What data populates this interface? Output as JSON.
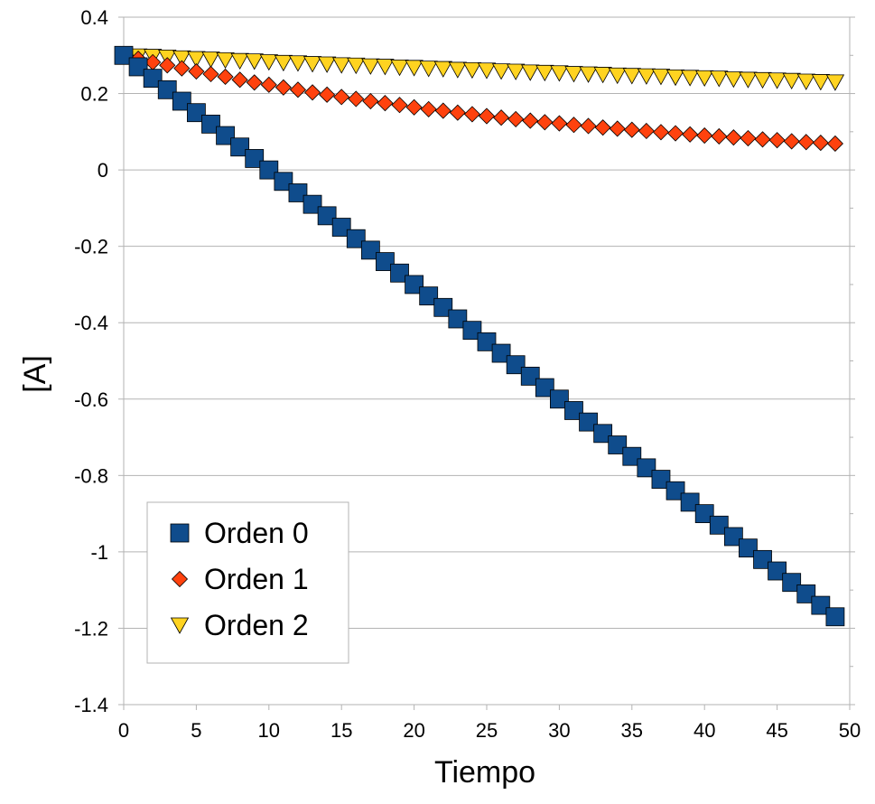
{
  "chart_data": {
    "type": "scatter",
    "xlabel": "Tiempo",
    "ylabel": "[A]",
    "xlim": [
      0,
      50
    ],
    "ylim": [
      -1.4,
      0.4
    ],
    "x_ticks": [
      0,
      5,
      10,
      15,
      20,
      25,
      30,
      35,
      40,
      45,
      50
    ],
    "y_ticks": [
      -1.4,
      -1.2,
      -1,
      -0.8,
      -0.6,
      -0.4,
      -0.2,
      0,
      0.2,
      0.4
    ],
    "x_tick_labels": [
      "0",
      "5",
      "10",
      "15",
      "20",
      "25",
      "30",
      "35",
      "40",
      "45",
      "50"
    ],
    "y_tick_labels": [
      "-1.4",
      "-1.2",
      "-1",
      "-0.8",
      "-0.6",
      "-0.4",
      "-0.2",
      "0",
      "0.2",
      "0.4"
    ],
    "grid": {
      "horizontal": true,
      "vertical": false
    },
    "legend_position": "bottom-left",
    "series": [
      {
        "name": "Orden 0",
        "marker": "square",
        "color": "#0F4C8C",
        "x": [
          0,
          1,
          2,
          3,
          4,
          5,
          6,
          7,
          8,
          9,
          10,
          11,
          12,
          13,
          14,
          15,
          16,
          17,
          18,
          19,
          20,
          21,
          22,
          23,
          24,
          25,
          26,
          27,
          28,
          29,
          30,
          31,
          32,
          33,
          34,
          35,
          36,
          37,
          38,
          39,
          40,
          41,
          42,
          43,
          44,
          45,
          46,
          47,
          48,
          49
        ],
        "y": [
          0.3,
          0.27,
          0.24,
          0.21,
          0.18,
          0.15,
          0.12,
          0.09,
          0.06,
          0.03,
          0,
          -0.03,
          -0.06,
          -0.09,
          -0.12,
          -0.15,
          -0.18,
          -0.21,
          -0.24,
          -0.27,
          -0.3,
          -0.33,
          -0.36,
          -0.39,
          -0.42,
          -0.45,
          -0.48,
          -0.51,
          -0.54,
          -0.57,
          -0.6,
          -0.63,
          -0.66,
          -0.69,
          -0.72,
          -0.75,
          -0.78,
          -0.81,
          -0.84,
          -0.87,
          -0.9,
          -0.93,
          -0.96,
          -0.99,
          -1.02,
          -1.05,
          -1.08,
          -1.11,
          -1.14,
          -1.17
        ]
      },
      {
        "name": "Orden 1",
        "marker": "diamond",
        "color": "#FF420E",
        "x": [
          0,
          1,
          2,
          3,
          4,
          5,
          6,
          7,
          8,
          9,
          10,
          11,
          12,
          13,
          14,
          15,
          16,
          17,
          18,
          19,
          20,
          21,
          22,
          23,
          24,
          25,
          26,
          27,
          28,
          29,
          30,
          31,
          32,
          33,
          34,
          35,
          36,
          37,
          38,
          39,
          40,
          41,
          42,
          43,
          44,
          45,
          46,
          47,
          48,
          49
        ],
        "y": [
          0.3,
          0.291,
          0.282,
          0.274,
          0.266,
          0.258,
          0.251,
          0.244,
          0.236,
          0.229,
          0.223,
          0.216,
          0.21,
          0.203,
          0.197,
          0.191,
          0.186,
          0.18,
          0.175,
          0.17,
          0.164,
          0.159,
          0.155,
          0.15,
          0.146,
          0.141,
          0.137,
          0.133,
          0.129,
          0.125,
          0.122,
          0.118,
          0.115,
          0.111,
          0.108,
          0.105,
          0.102,
          0.099,
          0.096,
          0.093,
          0.09,
          0.088,
          0.085,
          0.083,
          0.08,
          0.078,
          0.075,
          0.073,
          0.071,
          0.069
        ]
      },
      {
        "name": "Orden 2",
        "marker": "triangle-down",
        "color": "#FFD320",
        "x": [
          0,
          1,
          2,
          3,
          4,
          5,
          6,
          7,
          8,
          9,
          10,
          11,
          12,
          13,
          14,
          15,
          16,
          17,
          18,
          19,
          20,
          21,
          22,
          23,
          24,
          25,
          26,
          27,
          28,
          29,
          30,
          31,
          32,
          33,
          34,
          35,
          36,
          37,
          38,
          39,
          40,
          41,
          42,
          43,
          44,
          45,
          46,
          47,
          48,
          49
        ],
        "y": [
          0.3,
          0.298,
          0.297,
          0.295,
          0.293,
          0.291,
          0.29,
          0.288,
          0.286,
          0.285,
          0.283,
          0.281,
          0.28,
          0.278,
          0.277,
          0.275,
          0.274,
          0.272,
          0.271,
          0.269,
          0.268,
          0.266,
          0.265,
          0.263,
          0.262,
          0.261,
          0.259,
          0.258,
          0.256,
          0.255,
          0.254,
          0.252,
          0.251,
          0.25,
          0.248,
          0.247,
          0.246,
          0.245,
          0.243,
          0.242,
          0.241,
          0.24,
          0.238,
          0.237,
          0.236,
          0.235,
          0.234,
          0.232,
          0.231,
          0.23
        ]
      }
    ]
  }
}
